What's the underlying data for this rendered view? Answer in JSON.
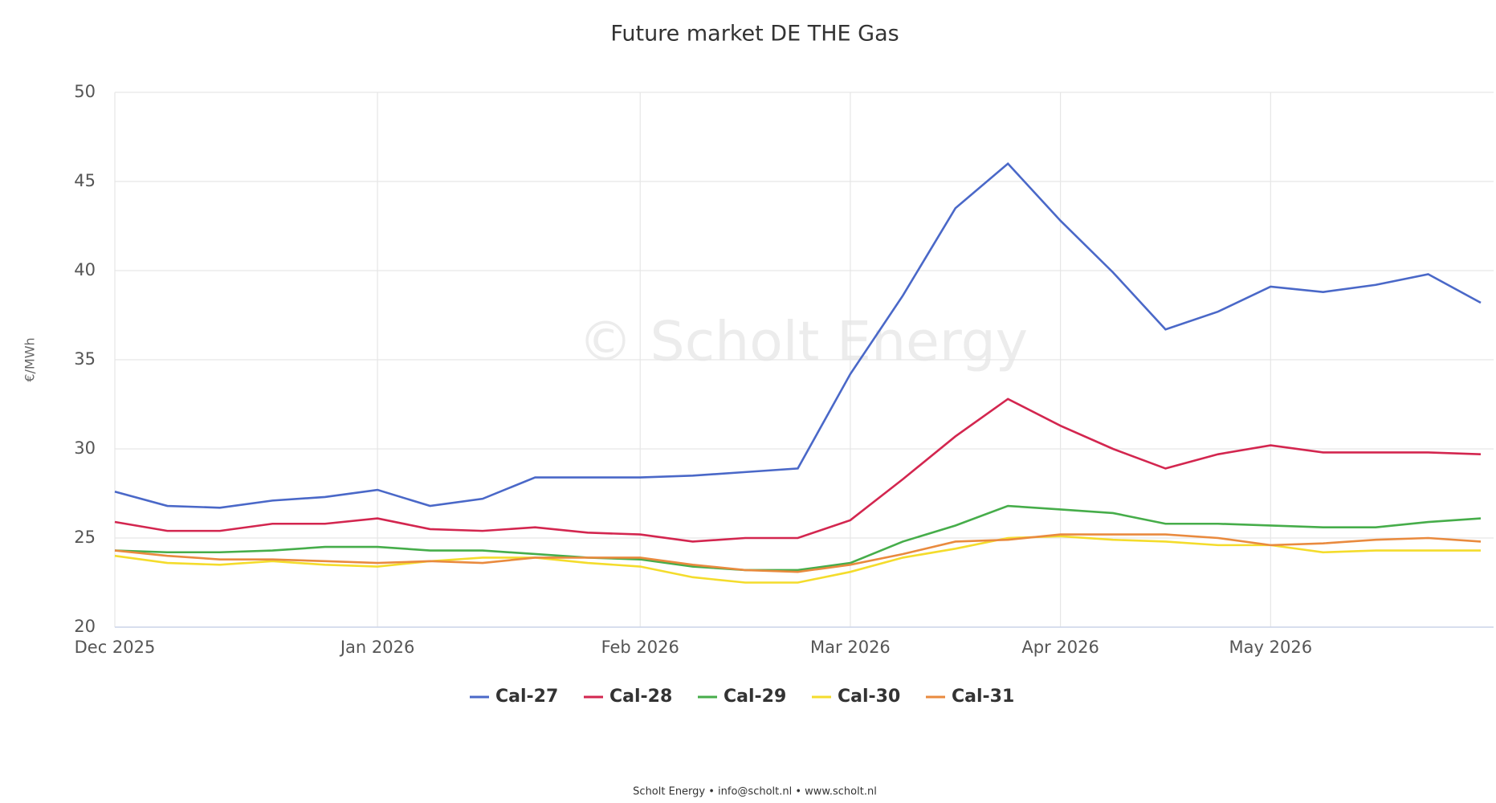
{
  "chart_data": {
    "type": "line",
    "title": "Future market DE THE Gas",
    "y_label": "€/MWh",
    "watermark": "© Scholt Energy",
    "footer": "Scholt Energy • info@scholt.nl • www.scholt.nl",
    "categories": [
      "Dec 2025",
      null,
      null,
      null,
      null,
      "Jan 2026",
      null,
      null,
      null,
      null,
      "Feb 2026",
      null,
      null,
      null,
      "Mar 2026",
      null,
      null,
      null,
      "Apr 2026",
      null,
      null,
      null,
      "May 2026",
      null,
      null,
      null,
      null
    ],
    "series": [
      {
        "name": "Cal-27",
        "color": "#4a68c8",
        "values": [
          27.6,
          26.8,
          26.7,
          27.1,
          27.3,
          27.7,
          26.8,
          27.2,
          28.4,
          28.4,
          28.4,
          28.5,
          28.7,
          28.9,
          34.2,
          38.6,
          43.5,
          46.0,
          42.8,
          39.9,
          36.7,
          37.7,
          39.1,
          38.8,
          39.2,
          39.8,
          38.2
        ]
      },
      {
        "name": "Cal-28",
        "color": "#d3264f",
        "values": [
          25.9,
          25.4,
          25.4,
          25.8,
          25.8,
          26.1,
          25.5,
          25.4,
          25.6,
          25.3,
          25.2,
          24.8,
          25.0,
          25.0,
          26.0,
          28.3,
          30.7,
          32.8,
          31.3,
          30.0,
          28.9,
          29.7,
          30.2,
          29.8,
          29.8,
          29.8,
          29.7
        ]
      },
      {
        "name": "Cal-29",
        "color": "#46ad4a",
        "values": [
          24.3,
          24.2,
          24.2,
          24.3,
          24.5,
          24.5,
          24.3,
          24.3,
          24.1,
          23.9,
          23.8,
          23.4,
          23.2,
          23.2,
          23.6,
          24.8,
          25.7,
          26.8,
          26.6,
          26.4,
          25.8,
          25.8,
          25.7,
          25.6,
          25.6,
          25.9,
          26.1
        ]
      },
      {
        "name": "Cal-30",
        "color": "#f4dc2c",
        "values": [
          24.0,
          23.6,
          23.5,
          23.7,
          23.5,
          23.4,
          23.7,
          23.9,
          23.9,
          23.6,
          23.4,
          22.8,
          22.5,
          22.5,
          23.1,
          23.9,
          24.4,
          25.0,
          25.1,
          24.9,
          24.8,
          24.6,
          24.6,
          24.2,
          24.3,
          24.3,
          24.3
        ]
      },
      {
        "name": "Cal-31",
        "color": "#e98a3e",
        "values": [
          24.3,
          24.0,
          23.8,
          23.8,
          23.7,
          23.6,
          23.7,
          23.6,
          23.9,
          23.9,
          23.9,
          23.5,
          23.2,
          23.1,
          23.5,
          24.1,
          24.8,
          24.9,
          25.2,
          25.2,
          25.2,
          25.0,
          24.6,
          24.7,
          24.9,
          25.0,
          24.8
        ]
      }
    ],
    "ylim": [
      20,
      50
    ],
    "yticks": [
      20,
      25,
      30,
      35,
      40,
      45,
      50
    ],
    "grid": true
  }
}
